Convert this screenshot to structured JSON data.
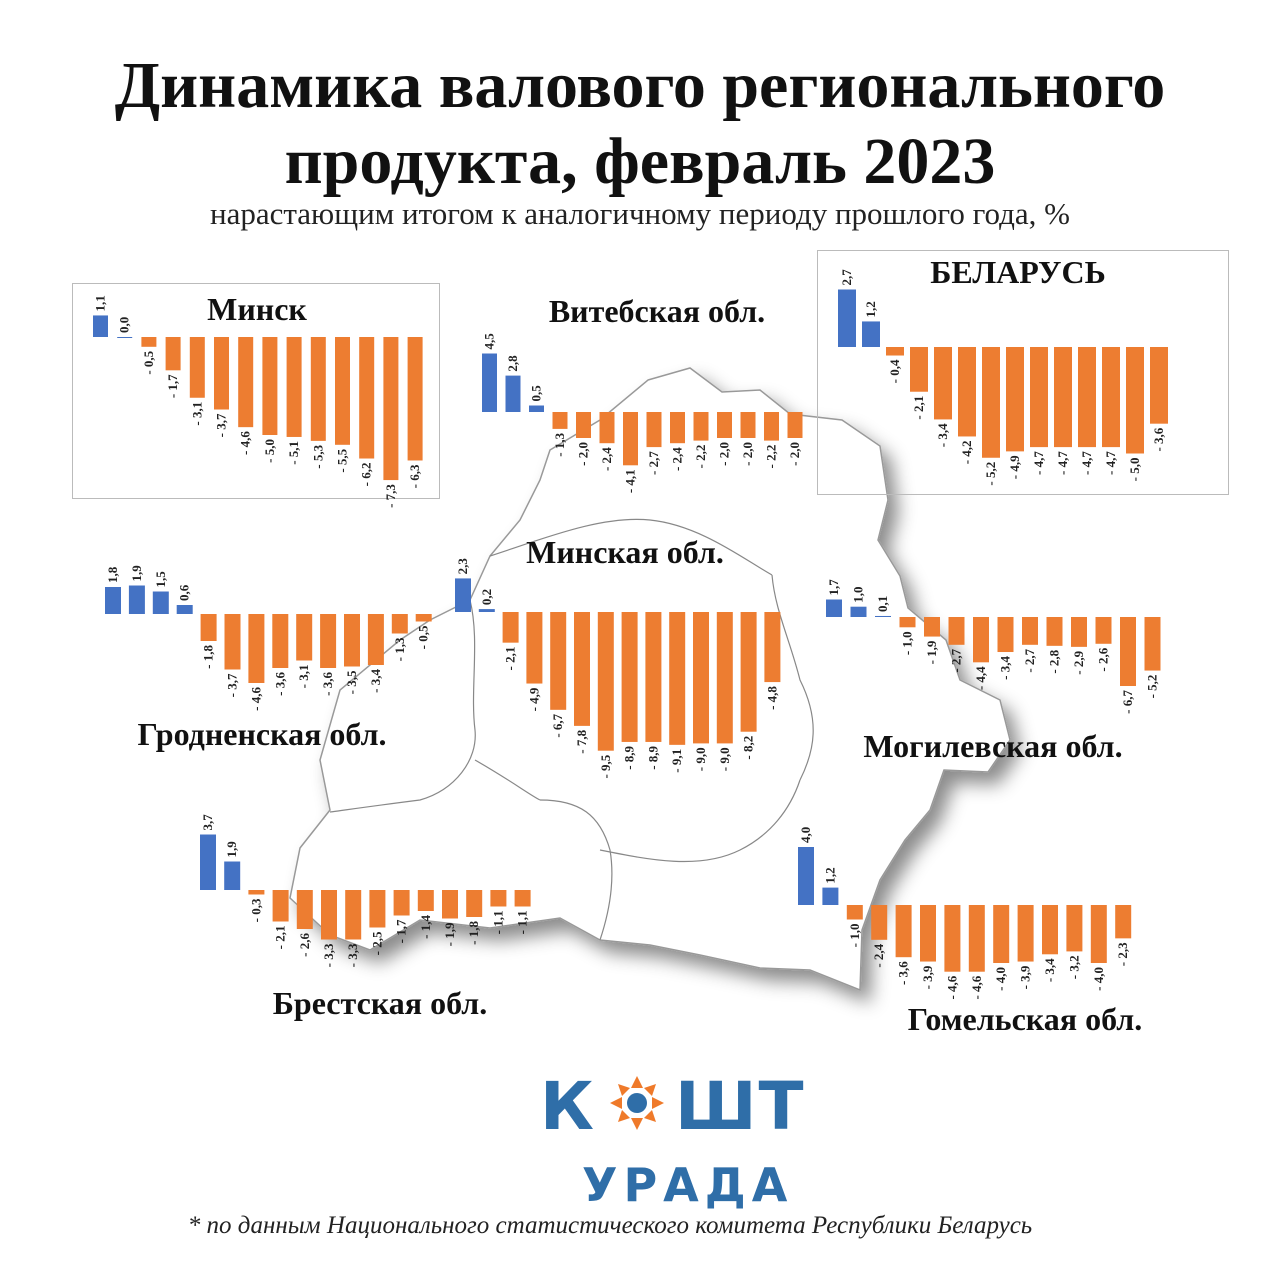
{
  "title": "Динамика валового регионального продукта, февраль 2023",
  "subtitle": "нарастающим итогом к аналогичному периоду прошлого года, %",
  "colors": {
    "positive": "#4472c4",
    "negative": "#ed7d31",
    "logo": "#2f6ea8",
    "logo_accent": "#ef7a2a"
  },
  "logo": {
    "word_left": "К",
    "word_right": "ШТ",
    "word_bottom": "УРАДА"
  },
  "footnote": "* по данным Национального статистического комитета Республики Беларусь",
  "chart_data": [
    {
      "type": "bar",
      "title": "Минск",
      "values": [
        1.1,
        0.0,
        -0.5,
        -1.7,
        -3.1,
        -3.7,
        -4.6,
        -5.0,
        -5.1,
        -5.3,
        -5.5,
        -6.2,
        -7.3,
        -6.3
      ],
      "labels": [
        "1,1",
        "0,0",
        "- 0,5",
        "- 1,7",
        "- 3,1",
        "- 3,7",
        "- 4,6",
        "- 5,0",
        "- 5,1",
        "- 5,3",
        "- 5,5",
        "- 6,2",
        "- 7,3",
        "- 6,3"
      ]
    },
    {
      "type": "bar",
      "title": "Витебская обл.",
      "values": [
        4.5,
        2.8,
        0.5,
        -1.3,
        -2.0,
        -2.4,
        -4.1,
        -2.7,
        -2.4,
        -2.2,
        -2.0,
        -2.0,
        -2.2,
        -2.0
      ],
      "labels": [
        "4,5",
        "2,8",
        "0,5",
        "- 1,3",
        "- 2,0",
        "- 2,4",
        "- 4,1",
        "- 2,7",
        "- 2,4",
        "- 2,2",
        "- 2,0",
        "- 2,0",
        "- 2,2",
        "- 2,0"
      ]
    },
    {
      "type": "bar",
      "title": "БЕЛАРУСЬ",
      "values": [
        2.7,
        1.2,
        -0.4,
        -2.1,
        -3.4,
        -4.2,
        -5.2,
        -4.9,
        -4.7,
        -4.7,
        -4.7,
        -4.7,
        -5.0,
        -3.6
      ],
      "labels": [
        "2,7",
        "1,2",
        "- 0,4",
        "- 2,1",
        "- 3,4",
        "- 4,2",
        "- 5,2",
        "- 4,9",
        "- 4,7",
        "- 4,7",
        "- 4,7",
        "- 4,7",
        "- 5,0",
        "- 3,6"
      ]
    },
    {
      "type": "bar",
      "title": "Гродненская обл.",
      "values": [
        1.8,
        1.9,
        1.5,
        0.6,
        -1.8,
        -3.7,
        -4.6,
        -3.6,
        -3.1,
        -3.6,
        -3.5,
        -3.4,
        -1.3,
        -0.5
      ],
      "labels": [
        "1,8",
        "1,9",
        "1,5",
        "0,6",
        "- 1,8",
        "- 3,7",
        "- 4,6",
        "- 3,6",
        "- 3,1",
        "- 3,6",
        "- 3,5",
        "- 3,4",
        "- 1,3",
        "- 0,5"
      ]
    },
    {
      "type": "bar",
      "title": "Минская обл.",
      "values": [
        2.3,
        0.2,
        -2.1,
        -4.9,
        -6.7,
        -7.8,
        -9.5,
        -8.9,
        -8.9,
        -9.1,
        -9.0,
        -9.0,
        -8.2,
        -4.8
      ],
      "labels": [
        "2,3",
        "0,2",
        "- 2,1",
        "- 4,9",
        "- 6,7",
        "- 7,8",
        "- 9,5",
        "- 8,9",
        "- 8,9",
        "- 9,1",
        "- 9,0",
        "- 9,0",
        "- 8,2",
        "- 4,8"
      ]
    },
    {
      "type": "bar",
      "title": "Могилевская обл.",
      "values": [
        1.7,
        1.0,
        0.1,
        -1.0,
        -1.9,
        -2.7,
        -4.4,
        -3.4,
        -2.7,
        -2.8,
        -2.9,
        -2.6,
        -6.7,
        -5.2
      ],
      "labels": [
        "1,7",
        "1,0",
        "0,1",
        "- 1,0",
        "- 1,9",
        "- 2,7",
        "- 4,4",
        "- 3,4",
        "- 2,7",
        "- 2,8",
        "- 2,9",
        "- 2,6",
        "- 6,7",
        "- 5,2"
      ]
    },
    {
      "type": "bar",
      "title": "Брестская обл.",
      "values": [
        3.7,
        1.9,
        -0.3,
        -2.1,
        -2.6,
        -3.3,
        -3.3,
        -2.5,
        -1.7,
        -1.4,
        -1.9,
        -1.8,
        -1.1,
        -1.1
      ],
      "labels": [
        "3,7",
        "1,9",
        "- 0,3",
        "- 2,1",
        "- 2,6",
        "- 3,3",
        "- 3,3",
        "- 2,5",
        "- 1,7",
        "- 1,4",
        "- 1,9",
        "- 1,8",
        "- 1,1",
        "- 1,1"
      ]
    },
    {
      "type": "bar",
      "title": "Гомельская обл.",
      "values": [
        4.0,
        1.2,
        -1.0,
        -2.4,
        -3.6,
        -3.9,
        -4.6,
        -4.6,
        -4.0,
        -3.9,
        -3.4,
        -3.2,
        -4.0,
        -2.3
      ],
      "labels": [
        "4,0",
        "1,2",
        "- 1,0",
        "- 2,4",
        "- 3,6",
        "- 3,9",
        "- 4,6",
        "- 4,6",
        "- 4,0",
        "- 3,9",
        "- 3,4",
        "- 3,2",
        "- 4,0",
        "- 2,3"
      ]
    }
  ]
}
